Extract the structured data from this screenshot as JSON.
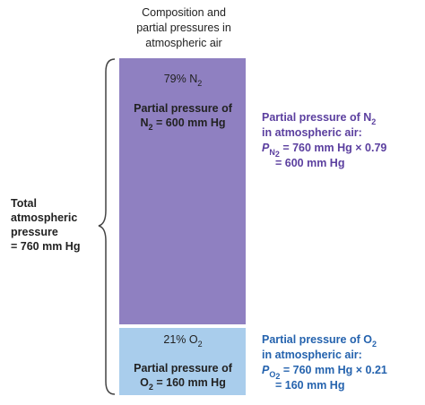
{
  "header": {
    "lines": [
      "Composition and",
      "partial pressures in",
      "atmospheric air"
    ]
  },
  "total": {
    "lines": [
      "Total",
      "atmospheric",
      "pressure",
      "= 760 mm Hg"
    ]
  },
  "nitrogen": {
    "box_label": [
      "79% N",
      "2"
    ],
    "box_line1": "Partial pressure of",
    "box_line2": [
      "N",
      "2",
      " = 600 mm Hg"
    ],
    "side_line1": [
      "Partial pressure of N",
      "2"
    ],
    "side_line2": "in atmospheric air:",
    "side_line3": [
      "P",
      "N",
      "2",
      " = 760 mm Hg × 0.79"
    ],
    "side_line4": "= 600 mm Hg"
  },
  "oxygen": {
    "box_label": [
      "21% O",
      "2"
    ],
    "box_line1": "Partial pressure of",
    "box_line2": [
      "O",
      "2",
      " = 160 mm Hg"
    ],
    "side_line1": [
      "Partial pressure of O",
      "2"
    ],
    "side_line2": "in atmospheric air:",
    "side_line3": [
      "P",
      "O",
      "2",
      " = 760 mm Hg × 0.21"
    ],
    "side_line4": "= 160 mm Hg"
  }
}
